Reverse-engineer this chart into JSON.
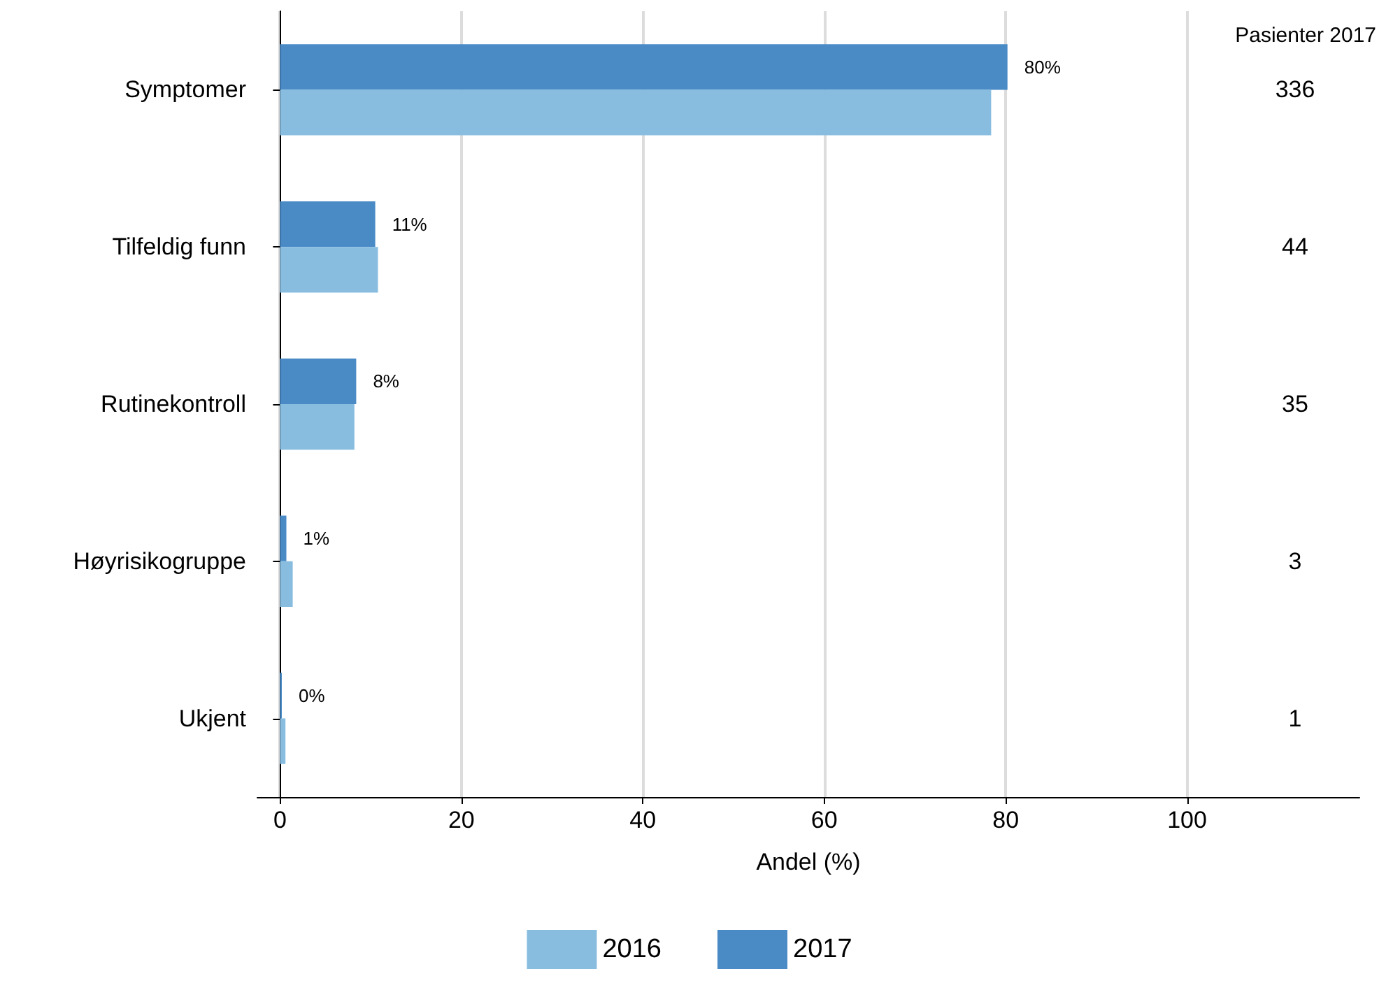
{
  "chart_data": {
    "type": "bar",
    "orientation": "horizontal",
    "xlabel": "Andel (%)",
    "categories": [
      "Symptomer",
      "Tilfeldig funn",
      "Rutinekontroll",
      "Høyrisikogruppe",
      "Ukjent"
    ],
    "series": [
      {
        "name": "2016",
        "color": "#88bde0",
        "values": [
          78.4,
          10.8,
          8.2,
          1.4,
          0.6
        ]
      },
      {
        "name": "2017",
        "color": "#4a8bc6",
        "values": [
          80.2,
          10.5,
          8.4,
          0.7,
          0.2
        ],
        "value_labels": [
          "80%",
          "11%",
          "8%",
          "1%",
          "0%"
        ]
      }
    ],
    "xlim": [
      -2.5,
      119
    ],
    "xticks": [
      0,
      20,
      40,
      60,
      80,
      100
    ],
    "grid": "x",
    "legend": "bottom",
    "annotations": [
      "Pasienter 2017",
      "336",
      "44",
      "35",
      "3",
      "1"
    ]
  }
}
